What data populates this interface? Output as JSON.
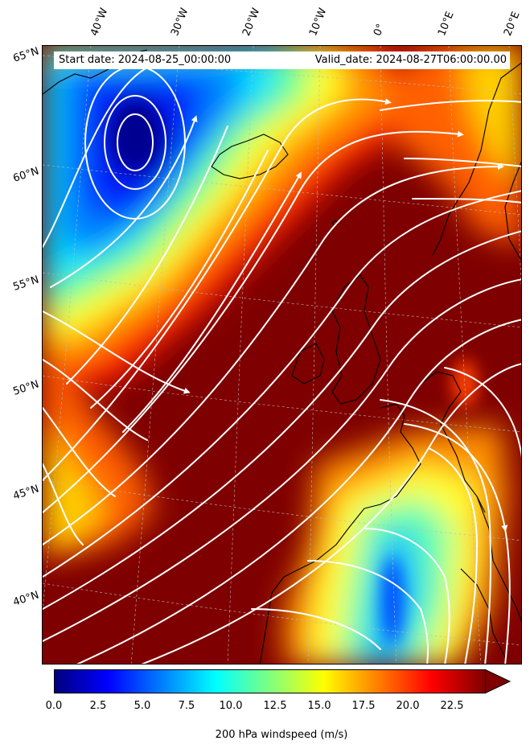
{
  "header": {
    "start_date": "Start date: 2024-08-25_00:00:00",
    "valid_date": "Valid_date: 2024-08-27T06:00:00.00"
  },
  "map": {
    "longitude_labels": [
      "40°W",
      "30°W",
      "20°W",
      "10°W",
      "0°",
      "10°E",
      "20°E"
    ],
    "latitude_labels": [
      "65°N",
      "60°N",
      "55°N",
      "50°N",
      "45°N",
      "40°N"
    ],
    "field": "200 hPa windspeed",
    "overlay": "white streamlines with arrowheads",
    "coastlines": "black"
  },
  "colorbar": {
    "label": "200 hPa windspeed (m/s)",
    "ticks": [
      "0.0",
      "2.5",
      "5.0",
      "7.5",
      "10.0",
      "12.5",
      "15.0",
      "17.5",
      "20.0",
      "22.5"
    ],
    "min": 0,
    "max": 25,
    "extend": "max",
    "colormap": [
      "#00007f",
      "#0000ff",
      "#007fff",
      "#00ffff",
      "#7fff7f",
      "#ffff00",
      "#ff7f00",
      "#ff0000",
      "#7f0000"
    ]
  }
}
